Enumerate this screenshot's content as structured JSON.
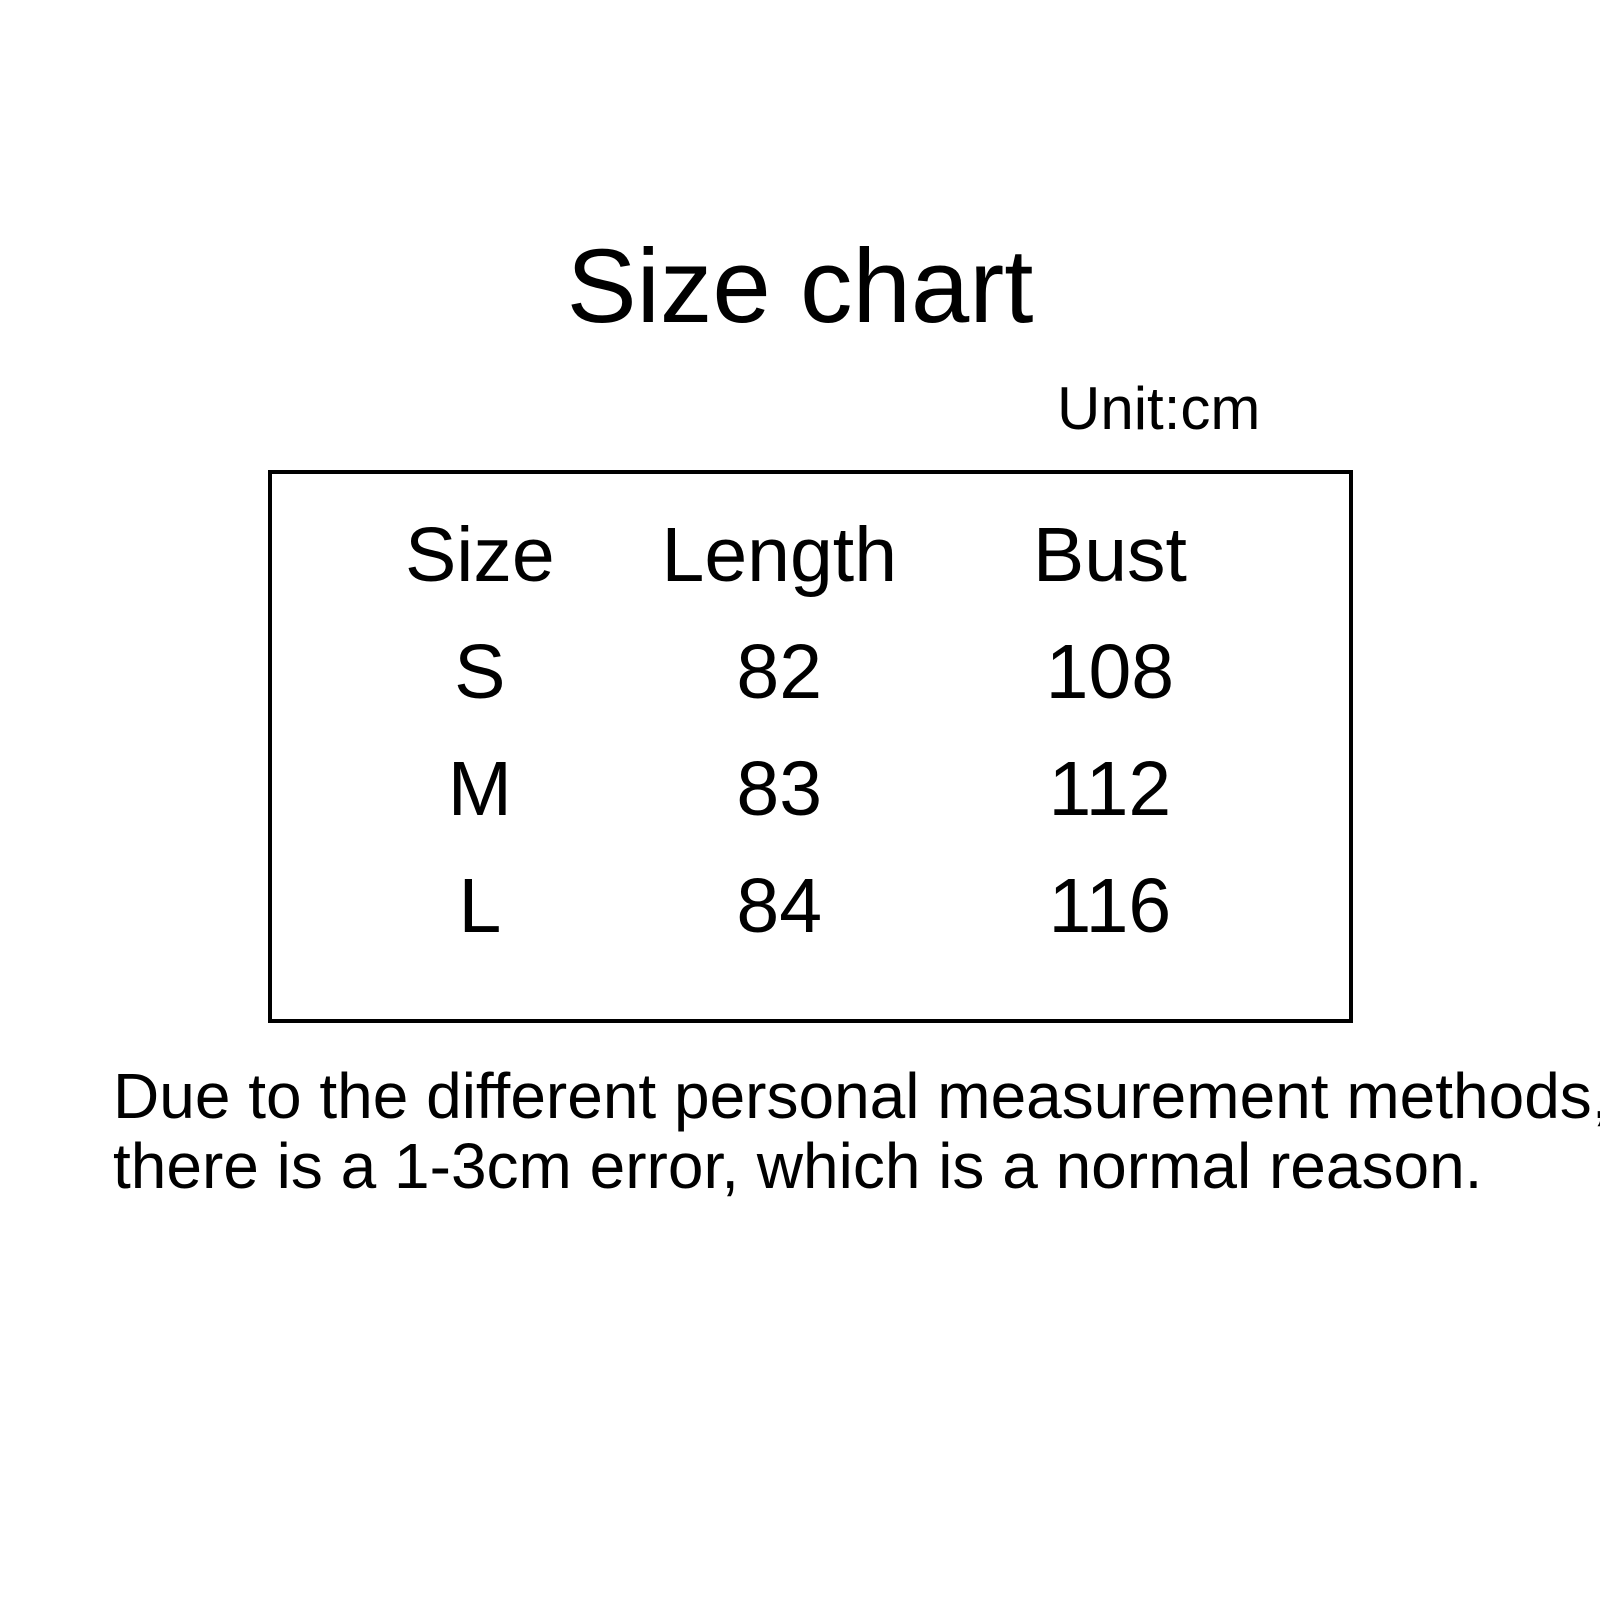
{
  "page": {
    "background_color": "#ffffff",
    "text_color": "#000000"
  },
  "header": {
    "title": "Size chart",
    "unit_label": "Unit:cm"
  },
  "chart_data": {
    "type": "table",
    "title": "Size chart",
    "unit": "cm",
    "columns": [
      "Size",
      "Length",
      "Bust"
    ],
    "rows": [
      {
        "size": "S",
        "length": 82,
        "bust": 108
      },
      {
        "size": "M",
        "length": 83,
        "bust": 112
      },
      {
        "size": "L",
        "length": 84,
        "bust": 116
      }
    ]
  },
  "disclaimer": {
    "lines": [
      "Due to the different personal measurement methods,",
      "there is a 1-3cm error, which is a normal reason."
    ]
  }
}
